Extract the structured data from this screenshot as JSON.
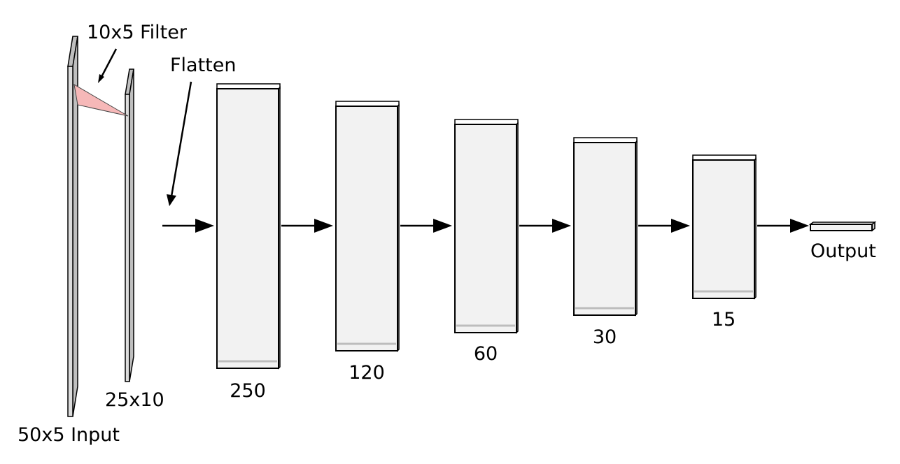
{
  "labels": {
    "filter": "10x5 Filter",
    "flatten": "Flatten",
    "input": "50x5 Input",
    "conv": "25x10",
    "output": "Output"
  },
  "layers": [
    {
      "name": "dense-250",
      "label": "250"
    },
    {
      "name": "dense-120",
      "label": "120"
    },
    {
      "name": "dense-60",
      "label": "60"
    },
    {
      "name": "dense-30",
      "label": "30"
    },
    {
      "name": "dense-15",
      "label": "15"
    }
  ],
  "colors": {
    "filter": "#f6b8b8",
    "layer_face": "#f2f2f2",
    "plate": "#dcdcdc"
  }
}
